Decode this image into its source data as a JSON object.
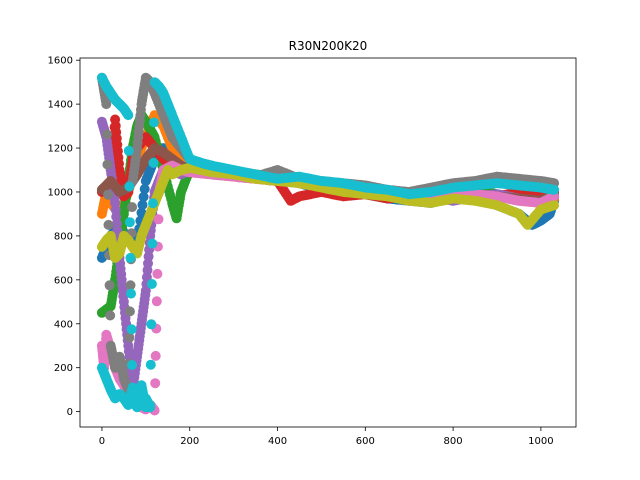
{
  "chart_data": {
    "type": "scatter",
    "title": "R30N200K20",
    "xlabel": "",
    "ylabel": "",
    "xlim": [
      -50,
      1080
    ],
    "ylim": [
      -70,
      1610
    ],
    "x_ticks": [
      0,
      200,
      400,
      600,
      800,
      1000
    ],
    "y_ticks": [
      0,
      200,
      400,
      600,
      800,
      1000,
      1200,
      1400,
      1600
    ],
    "grid": false,
    "legend": "none",
    "series": [
      {
        "color": "#1f77b4",
        "x": [
          0,
          20,
          40,
          60,
          80,
          100,
          120,
          140,
          160,
          180,
          200,
          250,
          300,
          350,
          400,
          450,
          500,
          550,
          600,
          650,
          700,
          750,
          800,
          850,
          900,
          950,
          980,
          1000,
          1020,
          1030
        ],
        "y": [
          700,
          800,
          850,
          780,
          760,
          1050,
          1150,
          1200,
          1180,
          1140,
          1120,
          1100,
          1080,
          1070,
          1090,
          1040,
          1010,
          1000,
          990,
          970,
          960,
          950,
          980,
          990,
          940,
          900,
          850,
          870,
          900,
          960
        ]
      },
      {
        "color": "#ff7f0e",
        "x": [
          0,
          10,
          20,
          40,
          60,
          80,
          100,
          120,
          140,
          160,
          180,
          200,
          250,
          300,
          350,
          400,
          450,
          500,
          550,
          600,
          650,
          700,
          750,
          800,
          850,
          900,
          950,
          1000,
          1030
        ],
        "y": [
          900,
          1000,
          950,
          900,
          1000,
          1150,
          1250,
          1350,
          1300,
          1200,
          1150,
          1130,
          1110,
          1090,
          1080,
          1070,
          1050,
          1030,
          1010,
          1000,
          990,
          980,
          960,
          990,
          1000,
          980,
          960,
          950,
          970
        ]
      },
      {
        "color": "#2ca02c",
        "x": [
          0,
          20,
          30,
          40,
          50,
          60,
          70,
          80,
          90,
          100,
          120,
          140,
          160,
          170,
          180,
          200,
          250,
          300,
          350,
          400,
          450,
          500,
          550,
          600,
          650,
          700,
          750,
          800,
          850,
          900,
          950,
          1000,
          1030
        ],
        "y": [
          450,
          480,
          600,
          750,
          900,
          1050,
          1200,
          1300,
          1350,
          1320,
          1250,
          1100,
          950,
          880,
          1000,
          1100,
          1120,
          1090,
          1080,
          1070,
          1050,
          1040,
          1010,
          1000,
          990,
          980,
          970,
          990,
          1010,
          990,
          970,
          960,
          980
        ]
      },
      {
        "color": "#d62728",
        "x": [
          0,
          20,
          30,
          40,
          50,
          60,
          70,
          80,
          100,
          120,
          140,
          160,
          180,
          200,
          250,
          300,
          350,
          400,
          430,
          450,
          500,
          550,
          600,
          650,
          700,
          750,
          800,
          850,
          900,
          950,
          1000,
          1030
        ],
        "y": [
          1000,
          1050,
          1330,
          1100,
          980,
          1000,
          1150,
          1200,
          1250,
          1200,
          1150,
          1120,
          1100,
          1090,
          1080,
          1070,
          1060,
          1050,
          960,
          980,
          1000,
          980,
          990,
          970,
          980,
          960,
          1000,
          990,
          980,
          1000,
          990,
          1000
        ]
      },
      {
        "color": "#9467bd",
        "x": [
          0,
          10,
          20,
          30,
          40,
          50,
          60,
          70,
          80,
          90,
          100,
          110,
          120,
          130,
          140,
          160,
          180,
          200,
          250,
          300,
          350,
          400,
          450,
          500,
          550,
          600,
          650,
          700,
          750,
          800,
          850,
          900,
          950,
          1000,
          1030
        ],
        "y": [
          1320,
          1250,
          1100,
          950,
          700,
          500,
          300,
          100,
          250,
          400,
          550,
          800,
          1000,
          1050,
          1100,
          1100,
          1080,
          1100,
          1090,
          1080,
          1070,
          1060,
          1050,
          1030,
          1020,
          1010,
          1000,
          990,
          980,
          960,
          980,
          990,
          970,
          960,
          980
        ]
      },
      {
        "color": "#8c564b",
        "x": [
          0,
          20,
          40,
          60,
          80,
          100,
          120,
          140,
          160,
          180,
          200,
          250,
          300,
          350,
          400,
          450,
          500,
          550,
          600,
          650,
          700,
          750,
          800,
          850,
          900,
          950,
          1000,
          1030
        ],
        "y": [
          1010,
          1050,
          1000,
          1020,
          1080,
          1150,
          1200,
          1180,
          1150,
          1120,
          1100,
          1090,
          1080,
          1070,
          1060,
          1050,
          1040,
          1020,
          1010,
          1000,
          990,
          980,
          1000,
          990,
          980,
          970,
          960,
          990
        ]
      },
      {
        "color": "#e377c2",
        "x": [
          0,
          5,
          10,
          20,
          30,
          40,
          50,
          60,
          70,
          80,
          90,
          100,
          110,
          120,
          130,
          140,
          160,
          180,
          200,
          250,
          300,
          350,
          400,
          450,
          500,
          550,
          600,
          650,
          700,
          750,
          800,
          850,
          900,
          950,
          1000,
          1030
        ],
        "y": [
          300,
          200,
          350,
          280,
          200,
          150,
          120,
          80,
          60,
          40,
          20,
          10,
          30,
          5,
          1000,
          1100,
          1120,
          1100,
          1090,
          1080,
          1070,
          1060,
          1050,
          1040,
          1030,
          1010,
          1000,
          990,
          980,
          970,
          1000,
          990,
          980,
          960,
          950,
          980
        ]
      },
      {
        "color": "#7f7f7f",
        "x": [
          0,
          10,
          20,
          30,
          40,
          50,
          60,
          70,
          80,
          90,
          100,
          110,
          120,
          140,
          160,
          180,
          200,
          250,
          300,
          350,
          400,
          450,
          500,
          550,
          600,
          650,
          700,
          750,
          800,
          850,
          900,
          950,
          1000,
          1030
        ],
        "y": [
          1520,
          1400,
          300,
          200,
          250,
          150,
          100,
          1050,
          1200,
          1400,
          1520,
          1500,
          1450,
          1350,
          1250,
          1200,
          1150,
          1100,
          1080,
          1070,
          1100,
          1060,
          1050,
          1040,
          1030,
          1010,
          1000,
          1020,
          1040,
          1050,
          1070,
          1060,
          1050,
          1040
        ]
      },
      {
        "color": "#bcbd22",
        "x": [
          0,
          10,
          20,
          30,
          40,
          50,
          60,
          70,
          80,
          90,
          100,
          110,
          120,
          130,
          140,
          150,
          160,
          180,
          200,
          250,
          300,
          350,
          400,
          450,
          500,
          550,
          600,
          650,
          700,
          750,
          800,
          850,
          900,
          950,
          970,
          1000,
          1030
        ],
        "y": [
          750,
          780,
          800,
          700,
          720,
          800,
          780,
          750,
          720,
          800,
          850,
          900,
          950,
          1000,
          1050,
          1100,
          1080,
          1100,
          1110,
          1090,
          1080,
          1060,
          1050,
          1040,
          1020,
          1000,
          990,
          980,
          960,
          950,
          970,
          960,
          940,
          900,
          850,
          920,
          940
        ]
      },
      {
        "color": "#17becf",
        "x": [
          0,
          10,
          20,
          30,
          40,
          50,
          60,
          70,
          80,
          90,
          100,
          110,
          120,
          130,
          140,
          150,
          160,
          180,
          200,
          230,
          250,
          300,
          350,
          400,
          450,
          500,
          550,
          600,
          650,
          700,
          750,
          800,
          850,
          900,
          950,
          1000,
          1030
        ],
        "y": [
          1520,
          1480,
          1450,
          1420,
          1400,
          1380,
          1350,
          50,
          20,
          120,
          20,
          30,
          1500,
          1480,
          1450,
          1400,
          1350,
          1250,
          1150,
          1130,
          1120,
          1100,
          1080,
          1060,
          1070,
          1050,
          1040,
          1020,
          1010,
          990,
          1000,
          1020,
          1030,
          1040,
          1030,
          1020,
          1010
        ]
      },
      {
        "color": "#17becf",
        "x": [
          0,
          10,
          20,
          30,
          40,
          50,
          60,
          70,
          80,
          90,
          100,
          110
        ],
        "y": [
          200,
          150,
          100,
          60,
          80,
          60,
          30,
          110,
          80,
          40,
          60,
          20
        ]
      }
    ]
  }
}
